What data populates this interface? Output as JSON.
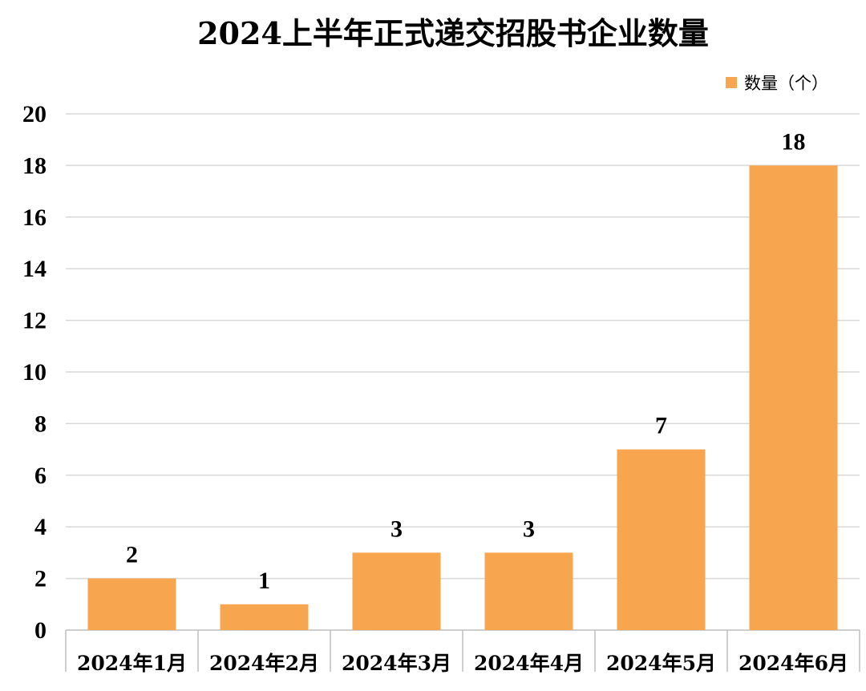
{
  "chart_data": {
    "type": "bar",
    "title": "2024上半年正式递交招股书企业数量",
    "categories": [
      "2024年1月",
      "2024年2月",
      "2024年3月",
      "2024年4月",
      "2024年5月",
      "2024年6月"
    ],
    "series": [
      {
        "name": "数量（个）",
        "values": [
          2,
          1,
          3,
          3,
          7,
          18
        ],
        "color": "#F7A54F"
      }
    ],
    "ylim": [
      0,
      20
    ],
    "yticks": [
      0,
      2,
      4,
      6,
      8,
      10,
      12,
      14,
      16,
      18,
      20
    ],
    "grid": true,
    "legend_position": "top-right",
    "data_labels": true
  }
}
